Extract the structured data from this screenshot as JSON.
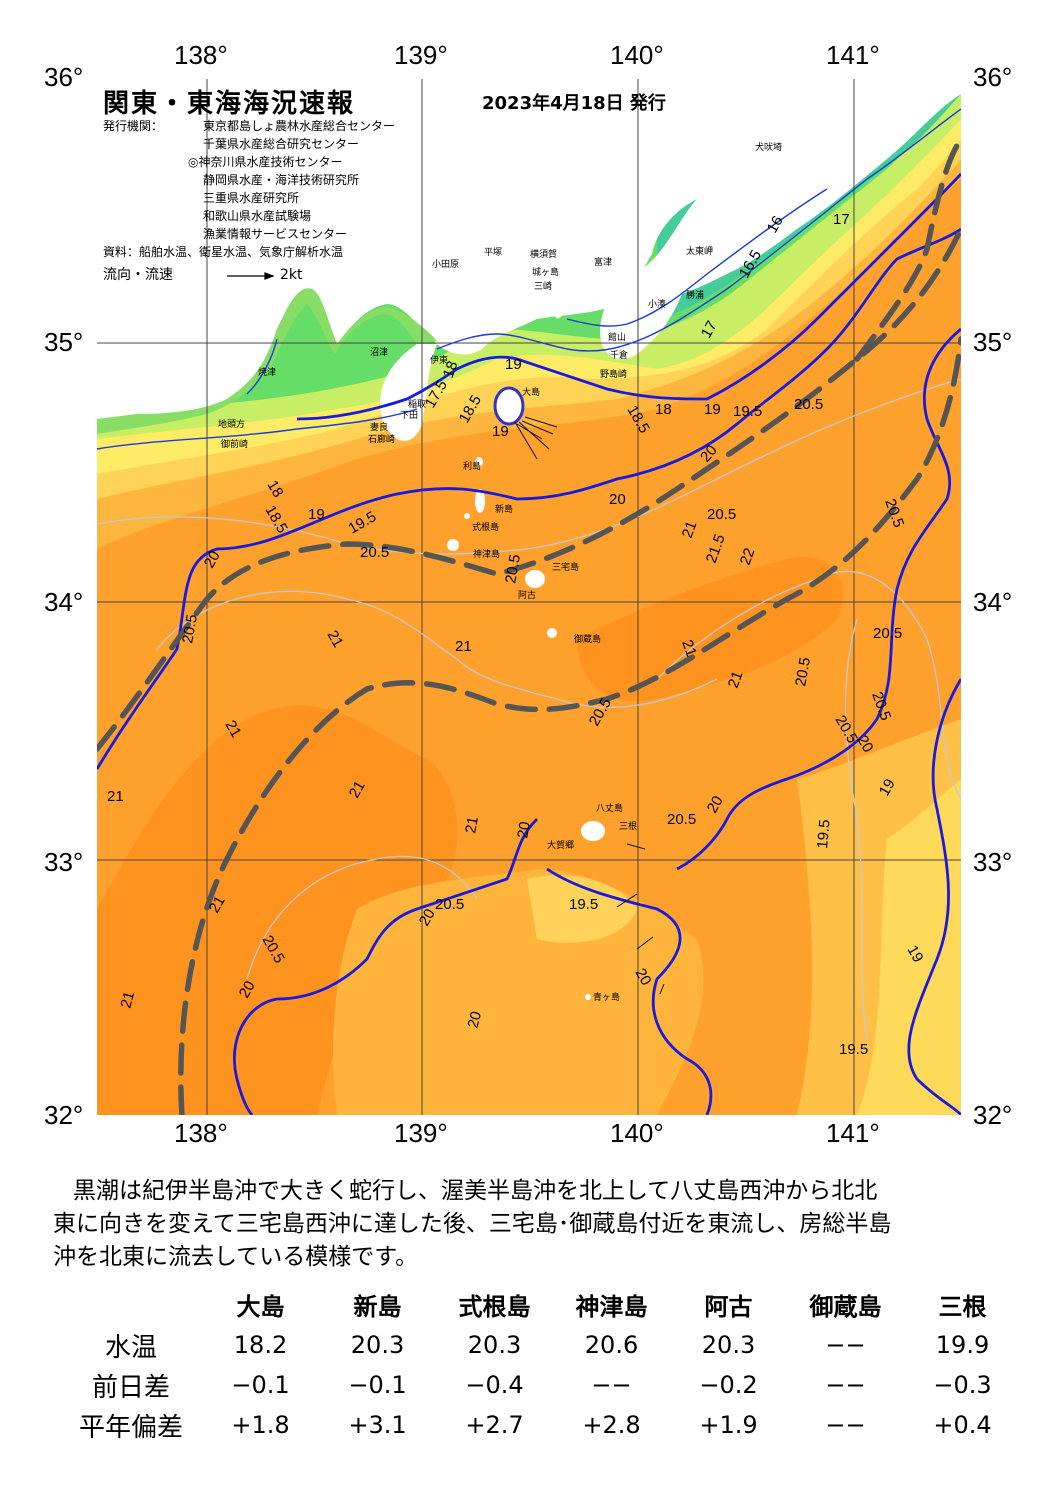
{
  "map": {
    "title": "関東・東海海況速報",
    "issue_date": "2023年4月18日 発行",
    "issuers_label": "発行機関：",
    "issuers": [
      "東京都島しょ農林水産総合センター",
      "千葉県水産総合研究センター",
      "◎神奈川県水産技術センター",
      "静岡県水産・海洋技術研究所",
      "三重県水産研究所",
      "和歌山県水産試験場",
      "漁業情報サービスセンター"
    ],
    "sources": "資料：船舶水温、衛星水温、気象庁解析水温",
    "flow_legend": "流向・流速",
    "flow_scale": "2kt",
    "lon_labels": [
      "138°",
      "139°",
      "140°",
      "141°"
    ],
    "lat_labels": [
      "36°",
      "35°",
      "34°",
      "33°",
      "32°"
    ],
    "colors": {
      "land": "#ffffff",
      "cyan": "#66ffff",
      "green": "#66dd66",
      "lightgreen": "#aaee66",
      "yellow": "#ffee66",
      "lightorange": "#ffcc44",
      "orange": "#ffa630",
      "deeporange": "#ff9422",
      "kuroshio_axis": "#555555",
      "isotherm_major": "#0000cc",
      "isotherm_minor": "#bbbbbb"
    },
    "contour_labels": [
      "16",
      "16.5",
      "17",
      "17.5",
      "18",
      "18.5",
      "19",
      "19.5",
      "20",
      "20.5",
      "21",
      "21.5"
    ],
    "place_names": {
      "choshi": "犬吠埼",
      "taitozaki": "太東岬",
      "katsuura": "勝浦",
      "kominato": "小湊",
      "odawara": "小田原",
      "hiratsuka": "平塚",
      "yokosuka": "横須賀",
      "jogashima": "城ヶ島",
      "tomitsu": "富津",
      "miura": "三崎",
      "tateyama": "館山",
      "chikura": "千倉",
      "nojimazaki": "野島崎",
      "numazu": "沼津",
      "ito": "伊東",
      "yaizu": "焼津",
      "shimoda": "下田",
      "inatori": "稲取",
      "omaezaki": "御前崎",
      "mera": "妻良",
      "irozaki": "石廊崎",
      "jinokatagata": "地頭方",
      "oshima": "大島",
      "toshima": "利島",
      "niijima": "新島",
      "shikinejima": "式根島",
      "kozushima": "神津島",
      "miyakejima": "三宅島",
      "ako": "阿古",
      "mikurajima": "御蔵島",
      "hachijojima": "八丈島",
      "mitsune": "三根",
      "okago": "大賀郷",
      "aogashima": "青ヶ島"
    }
  },
  "summary_lines": [
    "黒潮は紀伊半島沖で大きく蛇行し、渥美半島沖を北上して八丈島西沖から北北",
    "東に向きを変えて三宅島西沖に達した後、三宅島･御蔵島付近を東流し、房総半島",
    "沖を北東に流去している模様です。"
  ],
  "table": {
    "columns": [
      "大島",
      "新島",
      "式根島",
      "神津島",
      "阿古",
      "御蔵島",
      "三根"
    ],
    "rows": [
      {
        "label": "水温",
        "values": [
          "18.2",
          "20.3",
          "20.3",
          "20.6",
          "20.3",
          "−−",
          "19.9"
        ]
      },
      {
        "label": "前日差",
        "values": [
          "−0.1",
          "−0.1",
          "−0.4",
          "−−",
          "−0.2",
          "−−",
          "−0.3"
        ]
      },
      {
        "label": "平年偏差",
        "values": [
          "+1.8",
          "+3.1",
          "+2.7",
          "+2.8",
          "+1.9",
          "−−",
          "+0.4"
        ]
      }
    ]
  }
}
